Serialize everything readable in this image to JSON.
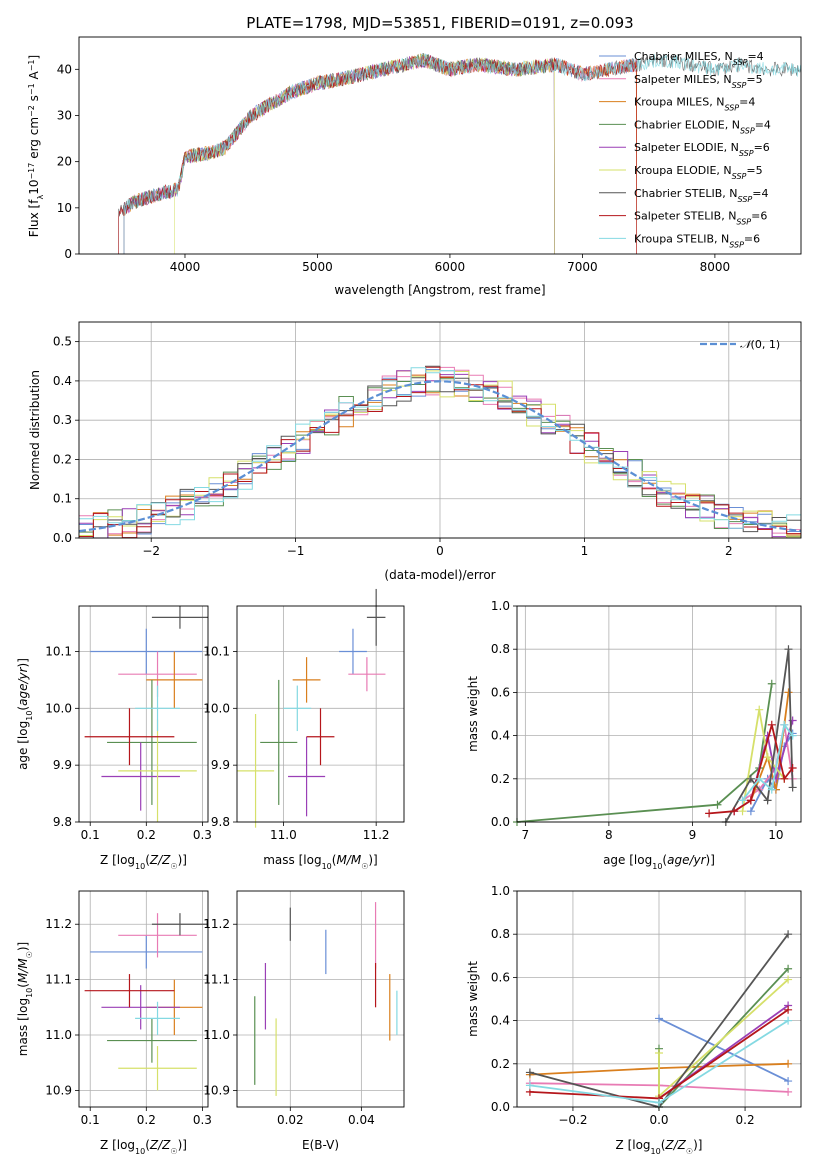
{
  "title": "PLATE=1798, MJD=53851, FIBERID=0191, z=0.093",
  "colors": {
    "chabrier_miles": "#6a8fd6",
    "salpeter_miles": "#e87bb4",
    "kroupa_miles": "#d97f1e",
    "chabrier_elodie": "#5a8f52",
    "salpeter_elodie": "#9a3fb6",
    "kroupa_elodie": "#d6e06a",
    "chabrier_stelib": "#555555",
    "salpeter_stelib": "#b5161b",
    "kroupa_stelib": "#84d9e2",
    "gaussian": "#5b8fd4"
  },
  "chart_data": [
    {
      "type": "line",
      "id": "spectrum",
      "xlabel": "wavelength [Angstrom, rest frame]",
      "ylabel": "Flux [f_λ10^-17 erg cm^-2 s^-1 A^-1]",
      "xlim": [
        3200,
        8650
      ],
      "ylim": [
        0,
        47
      ],
      "xticks": [
        "4000",
        "5000",
        "6000",
        "7000",
        "8000"
      ],
      "yticks": [
        "0",
        "10",
        "20",
        "30",
        "40"
      ],
      "legend_position": "right",
      "legend": [
        {
          "name": "Chabrier MILES",
          "nssp": "4"
        },
        {
          "name": "Salpeter MILES",
          "nssp": "5"
        },
        {
          "name": "Kroupa MILES",
          "nssp": "4"
        },
        {
          "name": "Chabrier ELODIE",
          "nssp": "4"
        },
        {
          "name": "Salpeter ELODIE",
          "nssp": "6"
        },
        {
          "name": "Kroupa ELODIE",
          "nssp": "5"
        },
        {
          "name": "Chabrier STELIB",
          "nssp": "4"
        },
        {
          "name": "Salpeter STELIB",
          "nssp": "6"
        },
        {
          "name": "Kroupa STELIB",
          "nssp": "6"
        }
      ],
      "continuum_x": [
        3500,
        3600,
        3800,
        3950,
        4000,
        4200,
        4300,
        4500,
        4800,
        5000,
        5200,
        5500,
        5800,
        6000,
        6200,
        6500,
        6800,
        7000,
        7200,
        7400,
        7600,
        7800,
        8000,
        8200,
        8400
      ],
      "continuum_y": [
        9,
        11,
        13,
        14,
        21,
        22,
        23,
        30,
        35,
        37,
        38,
        40,
        42,
        40,
        41,
        40,
        41,
        39,
        40,
        41,
        42,
        41,
        40,
        41,
        40
      ],
      "grid": false
    },
    {
      "type": "histogram",
      "id": "residuals",
      "xlabel": "(data-model)/error",
      "ylabel": "Normed distribution",
      "xlim": [
        -2.5,
        2.5
      ],
      "ylim": [
        0,
        0.55
      ],
      "xticks": [
        "−2",
        "−1",
        "0",
        "1",
        "2"
      ],
      "yticks": [
        "0.0",
        "0.1",
        "0.2",
        "0.3",
        "0.4",
        "0.5"
      ],
      "legend": [
        "N(0,1)"
      ],
      "legend_position": "top-right",
      "grid": true
    },
    {
      "type": "scatter",
      "id": "age_vs_Z",
      "xlabel": "Z [log10(Z/Z☉)]",
      "ylabel": "age [log10(age/yr)]",
      "xlim": [
        0.08,
        0.31
      ],
      "ylim": [
        9.8,
        10.18
      ],
      "xticks": [
        "0.1",
        "0.2",
        "0.3"
      ],
      "yticks": [
        "9.8",
        "9.9",
        "10.0",
        "10.1"
      ],
      "points": [
        {
          "s": "chabrier_miles",
          "x": 0.2,
          "y": 10.1,
          "xe": 0.1,
          "ye": 0.04
        },
        {
          "s": "salpeter_miles",
          "x": 0.22,
          "y": 10.06,
          "xe": 0.07,
          "ye": 0.04
        },
        {
          "s": "kroupa_miles",
          "x": 0.25,
          "y": 10.05,
          "xe": 0.05,
          "ye": 0.05
        },
        {
          "s": "chabrier_elodie",
          "x": 0.21,
          "y": 9.94,
          "xe": 0.08,
          "ye": 0.11
        },
        {
          "s": "salpeter_elodie",
          "x": 0.19,
          "y": 9.88,
          "xe": 0.07,
          "ye": 0.06
        },
        {
          "s": "kroupa_elodie",
          "x": 0.22,
          "y": 9.89,
          "xe": 0.07,
          "ye": 0.09
        },
        {
          "s": "chabrier_stelib",
          "x": 0.26,
          "y": 10.16,
          "xe": 0.05,
          "ye": 0.02
        },
        {
          "s": "salpeter_stelib",
          "x": 0.17,
          "y": 9.95,
          "xe": 0.08,
          "ye": 0.05
        },
        {
          "s": "kroupa_stelib",
          "x": 0.22,
          "y": 10.0,
          "xe": 0.04,
          "ye": 0.04
        }
      ],
      "grid": true
    },
    {
      "type": "scatter",
      "id": "age_vs_mass",
      "xlabel": "mass [log10(M/M☉)]",
      "ylabel": "",
      "xlim": [
        10.9,
        11.26
      ],
      "ylim": [
        9.8,
        10.18
      ],
      "xticks": [
        "11.0",
        "11.2"
      ],
      "yticks": [
        "9.8",
        "9.9",
        "10.0",
        "10.1"
      ],
      "points": [
        {
          "s": "chabrier_miles",
          "x": 11.15,
          "y": 10.1,
          "xe": 0.03,
          "ye": 0.04
        },
        {
          "s": "salpeter_miles",
          "x": 11.18,
          "y": 10.06,
          "xe": 0.04,
          "ye": 0.03
        },
        {
          "s": "kroupa_miles",
          "x": 11.05,
          "y": 10.05,
          "xe": 0.03,
          "ye": 0.04
        },
        {
          "s": "chabrier_elodie",
          "x": 10.99,
          "y": 9.94,
          "xe": 0.04,
          "ye": 0.11
        },
        {
          "s": "salpeter_elodie",
          "x": 11.05,
          "y": 9.88,
          "xe": 0.04,
          "ye": 0.07
        },
        {
          "s": "kroupa_elodie",
          "x": 10.94,
          "y": 9.89,
          "xe": 0.04,
          "ye": 0.1
        },
        {
          "s": "chabrier_stelib",
          "x": 11.2,
          "y": 10.16,
          "xe": 0.02,
          "ye": 0.05
        },
        {
          "s": "salpeter_stelib",
          "x": 11.08,
          "y": 9.95,
          "xe": 0.03,
          "ye": 0.05
        },
        {
          "s": "kroupa_stelib",
          "x": 11.03,
          "y": 10.0,
          "xe": 0.03,
          "ye": 0.04
        }
      ],
      "grid": true
    },
    {
      "type": "line",
      "id": "mass_weight_vs_age",
      "xlabel": "age [log10(age/yr)]",
      "ylabel": "mass weight",
      "xlim": [
        6.9,
        10.3
      ],
      "ylim": [
        0,
        1.0
      ],
      "xticks": [
        "7",
        "8",
        "9",
        "10"
      ],
      "yticks": [
        "0.0",
        "0.2",
        "0.4",
        "0.6",
        "0.8",
        "1.0"
      ],
      "series": [
        {
          "s": "chabrier_miles",
          "x": [
            9.7,
            9.9,
            10.0,
            10.1,
            10.2
          ],
          "y": [
            0.05,
            0.2,
            0.15,
            0.35,
            0.41
          ]
        },
        {
          "s": "salpeter_miles",
          "x": [
            9.6,
            9.8,
            10.0,
            10.1,
            10.2
          ],
          "y": [
            0.1,
            0.15,
            0.25,
            0.45,
            0.2
          ]
        },
        {
          "s": "kroupa_miles",
          "x": [
            9.7,
            9.9,
            10.0,
            10.15
          ],
          "y": [
            0.1,
            0.3,
            0.15,
            0.6
          ]
        },
        {
          "s": "chabrier_elodie",
          "x": [
            6.9,
            9.3,
            9.8,
            9.95
          ],
          "y": [
            0.0,
            0.08,
            0.25,
            0.64
          ]
        },
        {
          "s": "salpeter_elodie",
          "x": [
            9.5,
            9.7,
            9.9,
            10.0,
            10.2
          ],
          "y": [
            0.05,
            0.1,
            0.4,
            0.2,
            0.47
          ]
        },
        {
          "s": "kroupa_elodie",
          "x": [
            9.6,
            9.8,
            9.9,
            10.1
          ],
          "y": [
            0.05,
            0.52,
            0.3,
            0.2
          ]
        },
        {
          "s": "chabrier_stelib",
          "x": [
            9.4,
            9.7,
            9.9,
            10.15,
            10.2
          ],
          "y": [
            0.0,
            0.2,
            0.1,
            0.8,
            0.16
          ]
        },
        {
          "s": "salpeter_stelib",
          "x": [
            9.2,
            9.5,
            9.7,
            9.95,
            10.1,
            10.2
          ],
          "y": [
            0.04,
            0.05,
            0.1,
            0.45,
            0.2,
            0.25
          ]
        },
        {
          "s": "kroupa_stelib",
          "x": [
            9.6,
            9.8,
            9.95,
            10.1,
            10.2
          ],
          "y": [
            0.1,
            0.2,
            0.15,
            0.45,
            0.4
          ]
        }
      ],
      "grid": true
    },
    {
      "type": "scatter",
      "id": "mass_vs_Z",
      "xlabel": "Z [log10(Z/Z☉)]",
      "ylabel": "mass [log10(M/M☉)]",
      "xlim": [
        0.08,
        0.31
      ],
      "ylim": [
        10.87,
        11.26
      ],
      "xticks": [
        "0.1",
        "0.2",
        "0.3"
      ],
      "yticks": [
        "10.9",
        "11.0",
        "11.1",
        "11.2"
      ],
      "points": [
        {
          "s": "chabrier_miles",
          "x": 0.2,
          "y": 11.15,
          "xe": 0.1,
          "ye": 0.03
        },
        {
          "s": "salpeter_miles",
          "x": 0.22,
          "y": 11.18,
          "xe": 0.07,
          "ye": 0.04
        },
        {
          "s": "kroupa_miles",
          "x": 0.25,
          "y": 11.05,
          "xe": 0.05,
          "ye": 0.05
        },
        {
          "s": "chabrier_elodie",
          "x": 0.21,
          "y": 10.99,
          "xe": 0.08,
          "ye": 0.04
        },
        {
          "s": "salpeter_elodie",
          "x": 0.19,
          "y": 11.05,
          "xe": 0.07,
          "ye": 0.04
        },
        {
          "s": "kroupa_elodie",
          "x": 0.22,
          "y": 10.94,
          "xe": 0.07,
          "ye": 0.04
        },
        {
          "s": "chabrier_stelib",
          "x": 0.26,
          "y": 11.2,
          "xe": 0.05,
          "ye": 0.02
        },
        {
          "s": "salpeter_stelib",
          "x": 0.17,
          "y": 11.08,
          "xe": 0.08,
          "ye": 0.03
        },
        {
          "s": "kroupa_stelib",
          "x": 0.22,
          "y": 11.03,
          "xe": 0.04,
          "ye": 0.03
        }
      ],
      "grid": true
    },
    {
      "type": "scatter",
      "id": "mass_vs_ebv",
      "xlabel": "E(B-V)",
      "ylabel": "",
      "xlim": [
        0.005,
        0.052
      ],
      "ylim": [
        10.87,
        11.26
      ],
      "xticks": [
        "0.02",
        "0.04"
      ],
      "yticks": [
        "10.9",
        "11.0",
        "11.1",
        "11.2"
      ],
      "points": [
        {
          "s": "chabrier_miles",
          "x": 0.03,
          "y": 11.15,
          "ye": 0.04
        },
        {
          "s": "salpeter_miles",
          "x": 0.044,
          "y": 11.18,
          "ye": 0.06
        },
        {
          "s": "kroupa_miles",
          "x": 0.048,
          "y": 11.05,
          "ye": 0.06
        },
        {
          "s": "chabrier_elodie",
          "x": 0.01,
          "y": 10.99,
          "ye": 0.08
        },
        {
          "s": "salpeter_elodie",
          "x": 0.013,
          "y": 11.07,
          "ye": 0.06
        },
        {
          "s": "kroupa_elodie",
          "x": 0.016,
          "y": 10.96,
          "ye": 0.07
        },
        {
          "s": "chabrier_stelib",
          "x": 0.02,
          "y": 11.2,
          "ye": 0.03
        },
        {
          "s": "salpeter_stelib",
          "x": 0.044,
          "y": 11.09,
          "ye": 0.04
        },
        {
          "s": "kroupa_stelib",
          "x": 0.05,
          "y": 11.04,
          "ye": 0.04
        }
      ],
      "grid": true
    },
    {
      "type": "line",
      "id": "mass_weight_vs_Z",
      "xlabel": "Z [log10(Z/Z☉)]",
      "ylabel": "mass weight",
      "xlim": [
        -0.33,
        0.33
      ],
      "ylim": [
        0,
        1.0
      ],
      "xticks": [
        "−0.2",
        "0.0",
        "0.2"
      ],
      "yticks": [
        "0.0",
        "0.2",
        "0.4",
        "0.6",
        "0.8",
        "1.0"
      ],
      "series": [
        {
          "s": "chabrier_miles",
          "x": [
            0.0,
            0.3
          ],
          "y": [
            0.41,
            0.12
          ]
        },
        {
          "s": "salpeter_miles",
          "x": [
            -0.3,
            0.0,
            0.3
          ],
          "y": [
            0.11,
            0.1,
            0.07
          ]
        },
        {
          "s": "kroupa_miles",
          "x": [
            -0.3,
            0.0,
            0.3
          ],
          "y": [
            0.15,
            0.18,
            0.2
          ]
        },
        {
          "s": "chabrier_elodie",
          "x": [
            0.0,
            0.0,
            0.3
          ],
          "y": [
            0.27,
            0.0,
            0.64
          ]
        },
        {
          "s": "salpeter_elodie",
          "x": [
            0.0,
            0.3
          ],
          "y": [
            0.04,
            0.47
          ]
        },
        {
          "s": "kroupa_elodie",
          "x": [
            0.0,
            0.0,
            0.3
          ],
          "y": [
            0.25,
            0.05,
            0.59
          ]
        },
        {
          "s": "chabrier_stelib",
          "x": [
            -0.3,
            0.0,
            0.3
          ],
          "y": [
            0.16,
            0.0,
            0.8
          ]
        },
        {
          "s": "salpeter_stelib",
          "x": [
            -0.3,
            0.0,
            0.3
          ],
          "y": [
            0.07,
            0.04,
            0.45
          ]
        },
        {
          "s": "kroupa_stelib",
          "x": [
            -0.3,
            0.0,
            0.3
          ],
          "y": [
            0.1,
            0.02,
            0.4
          ]
        }
      ],
      "grid": true
    }
  ]
}
